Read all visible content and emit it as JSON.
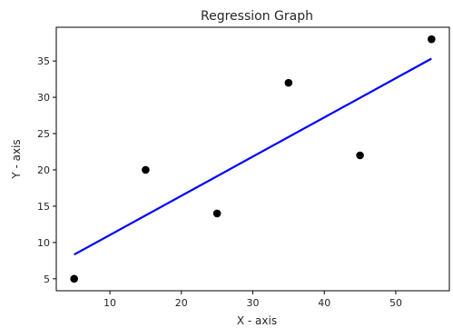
{
  "chart_data": {
    "type": "scatter",
    "title": "Regression Graph",
    "xlabel": "X - axis",
    "ylabel": "Y - axis",
    "xlim": [
      2.5,
      57.5
    ],
    "ylim": [
      3.35,
      39.65
    ],
    "x_ticks": [
      10,
      20,
      30,
      40,
      50
    ],
    "y_ticks": [
      5,
      10,
      15,
      20,
      25,
      30,
      35
    ],
    "grid": false,
    "series": [
      {
        "kind": "scatter",
        "color": "#000000",
        "points": [
          {
            "x": 5,
            "y": 5
          },
          {
            "x": 15,
            "y": 20
          },
          {
            "x": 25,
            "y": 14
          },
          {
            "x": 35,
            "y": 32
          },
          {
            "x": 45,
            "y": 22
          },
          {
            "x": 55,
            "y": 38
          }
        ]
      },
      {
        "kind": "line",
        "color": "#0000ff",
        "points": [
          {
            "x": 5,
            "y": 8.33
          },
          {
            "x": 55,
            "y": 35.33
          }
        ]
      }
    ]
  }
}
